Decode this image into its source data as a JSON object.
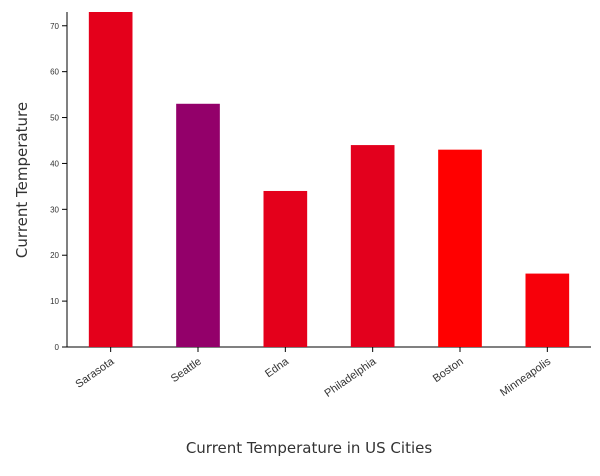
{
  "chart_data": {
    "type": "bar",
    "categories": [
      "Sarasota",
      "Seattle",
      "Edna",
      "Philadelphia",
      "Boston",
      "Minneapolis"
    ],
    "values": [
      73,
      53,
      34,
      44,
      43,
      16
    ],
    "bar_colors": [
      "#e4001b",
      "#93006a",
      "#e4001b",
      "#e3001d",
      "#ff0000",
      "#f7000a"
    ],
    "title": "",
    "xlabel": "Current Temperature in US Cities",
    "ylabel": "Current Temperature",
    "ylim": [
      0,
      73
    ],
    "yticks": [
      0,
      10,
      20,
      30,
      40,
      50,
      60,
      70
    ],
    "legend": "none",
    "grid": false
  }
}
